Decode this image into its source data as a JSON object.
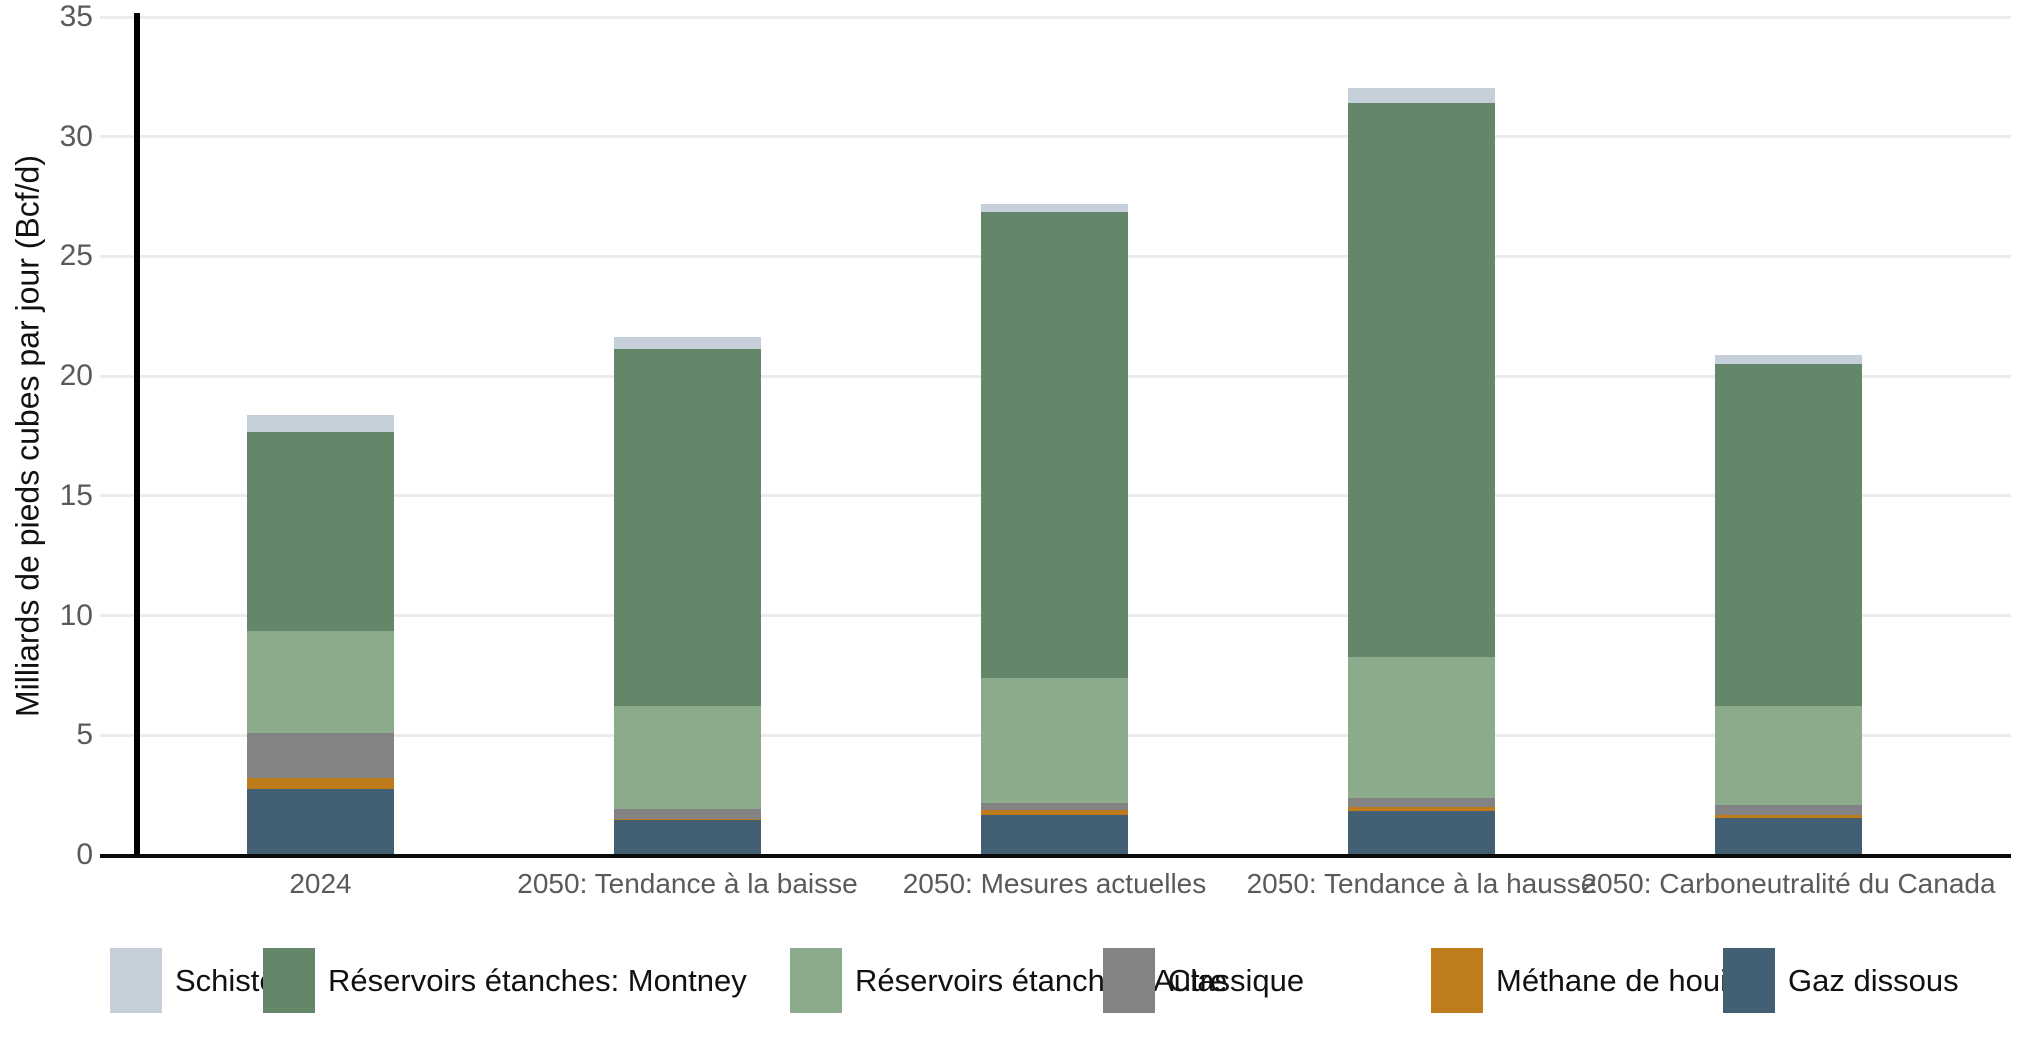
{
  "chart_data": {
    "type": "bar",
    "stacked": true,
    "title": "",
    "xlabel": "",
    "ylabel": "Milliards de pieds cubes par jour (Bcf/d)",
    "ylim": [
      0,
      35
    ],
    "ytick_step": 5,
    "ytick_labels": [
      "0",
      "5",
      "10",
      "15",
      "20",
      "25",
      "30",
      "35"
    ],
    "grid": true,
    "categories": [
      "2024",
      "2050: Tendance à la baisse",
      "2050: Mesures actuelles",
      "2050: Tendance à la hausse",
      "2050: Carboneutralité du Canada"
    ],
    "series": [
      {
        "name": "Gaz dissous",
        "color": "#425f73",
        "values": [
          2.76,
          1.46,
          1.68,
          1.82,
          1.54
        ]
      },
      {
        "name": "Méthane de houille",
        "color": "#be7c1d",
        "values": [
          0.45,
          0.05,
          0.2,
          0.17,
          0.14
        ]
      },
      {
        "name": "Classique",
        "color": "#838383",
        "values": [
          1.9,
          0.4,
          0.3,
          0.41,
          0.42
        ]
      },
      {
        "name": "Réservoirs étanches: Autre",
        "color": "#8caa8c",
        "values": [
          4.25,
          4.33,
          5.22,
          5.86,
          4.14
        ]
      },
      {
        "name": "Réservoirs étanches: Montney",
        "color": "#638768",
        "values": [
          8.3,
          14.88,
          19.45,
          23.14,
          14.26
        ]
      },
      {
        "name": "Schistes",
        "color": "#c5d0db",
        "values": [
          0.7,
          0.5,
          0.35,
          0.65,
          0.4
        ]
      }
    ],
    "totals": [
      18.36,
      21.62,
      27.2,
      32.05,
      20.9
    ],
    "legend": {
      "position": "bottom",
      "items": [
        "Schistes",
        "Réservoirs étanches: Montney",
        "Réservoirs étanches: Autre",
        "Classique",
        "Méthane de houille",
        "Gaz dissous"
      ]
    }
  }
}
